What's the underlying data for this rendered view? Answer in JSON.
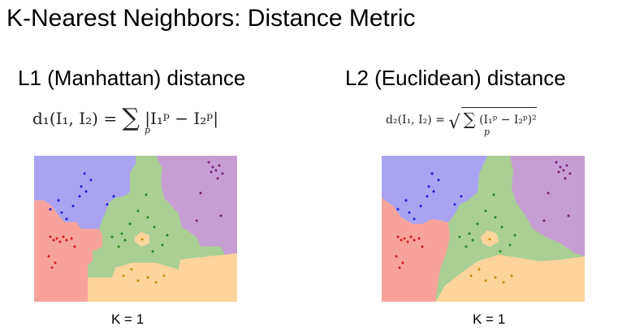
{
  "slide": {
    "title": "K-Nearest Neighbors: Distance Metric"
  },
  "panels": {
    "l1": {
      "heading": "L1 (Manhattan) distance",
      "caption": "K = 1",
      "formula": {
        "lhs": "d₁(I₁, I₂) =",
        "sigma": "∑",
        "index": "p",
        "body": "|I₁ᵖ − I₂ᵖ|"
      }
    },
    "l2": {
      "heading": "L2 (Euclidean) distance",
      "caption": "K = 1",
      "formula": {
        "lhs": "d₂(I₁, I₂) =",
        "sigma": "∑",
        "index": "p",
        "body": "(I₁ᵖ − I₂ᵖ)²"
      }
    }
  },
  "region_colors": {
    "blue": "#a9a3f2",
    "purple": "#c79ed3",
    "green": "#a9cf94",
    "red": "#f7a39c",
    "yellow": "#fcd49c"
  },
  "point_colors": {
    "blue": "#1a1ae0",
    "purple": "#7a1a7a",
    "green": "#1f8a1f",
    "red": "#d21a1a",
    "yellow": "#c88a00"
  }
}
